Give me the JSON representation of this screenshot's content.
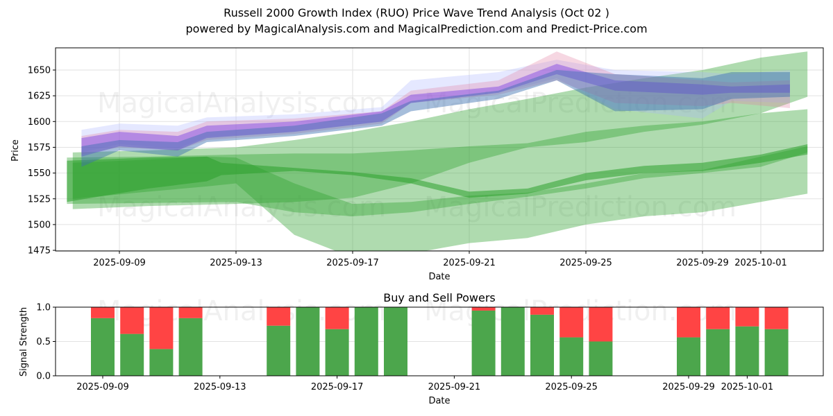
{
  "header": {
    "title": "Russell 2000 Growth Index (RUO) Price Wave Trend Analysis (Oct 02 )",
    "subtitle": "powered by MagicalAnalysis.com and MagicalPrediction.com and Predict-Price.com"
  },
  "watermarks": [
    "MagicalAnalysis.com",
    "MagicalPrediction.com"
  ],
  "colors": {
    "green_band": "#2ca02c",
    "purple": "#7b3fe4",
    "blue": "#3a6fb0",
    "lavender": "#aab2ff",
    "pink": "#e07aa0",
    "buy": "#4ca64c",
    "sell": "#ff4444"
  },
  "chart_data": [
    {
      "type": "area",
      "title": "",
      "xlabel": "Date",
      "ylabel": "Price",
      "ylim": [
        1473,
        1672
      ],
      "yticks": [
        1475,
        1500,
        1525,
        1550,
        1575,
        1600,
        1625,
        1650
      ],
      "xticks": [
        "2025-09-09",
        "2025-09-13",
        "2025-09-17",
        "2025-09-21",
        "2025-09-25",
        "2025-09-29",
        "2025-10-01"
      ],
      "grid": true,
      "x_start": "2025-09-09",
      "bands": [
        {
          "name": "green-upper-band",
          "color": "green",
          "opacity": 0.38,
          "x": [
            -1.6,
            1,
            4,
            6,
            8,
            10,
            12,
            14,
            16,
            18,
            20,
            22.0,
            23.6
          ],
          "upper": [
            1570,
            1572,
            1575,
            1582,
            1590,
            1600,
            1612,
            1622,
            1633,
            1642,
            1650,
            1662,
            1668
          ],
          "lower": [
            1515,
            1518,
            1520,
            1522,
            1526,
            1540,
            1560,
            1575,
            1580,
            1590,
            1597,
            1608,
            1624
          ]
        },
        {
          "name": "green-middle-band",
          "color": "green",
          "opacity": 0.38,
          "x": [
            -1.8,
            1,
            4,
            6,
            8,
            10,
            12,
            14,
            16,
            18,
            20,
            22.0,
            23.6
          ],
          "upper": [
            1565,
            1566,
            1568,
            1569,
            1569,
            1572,
            1576,
            1579,
            1590,
            1596,
            1600,
            1608,
            1612
          ],
          "lower": [
            1520,
            1521,
            1522,
            1512,
            1508,
            1512,
            1520,
            1527,
            1535,
            1545,
            1550,
            1556,
            1570
          ]
        },
        {
          "name": "green-lower-band",
          "color": "green",
          "opacity": 0.38,
          "x": [
            -1.6,
            1,
            3,
            4,
            6,
            8,
            10,
            12,
            14,
            16,
            18,
            20,
            22.0,
            23.6
          ],
          "upper": [
            1560,
            1563,
            1566,
            1565,
            1540,
            1520,
            1522,
            1528,
            1531,
            1540,
            1550,
            1553,
            1566,
            1576
          ],
          "lower": [
            1525,
            1532,
            1537,
            1540,
            1490,
            1468,
            1472,
            1482,
            1487,
            1500,
            1508,
            1512,
            1522,
            1530
          ]
        },
        {
          "name": "green-dark-band",
          "color": "green",
          "opacity": 0.55,
          "x": [
            -1.8,
            1,
            3,
            3.5,
            6,
            8,
            10,
            12,
            14,
            16,
            18,
            20,
            22.0,
            23.6
          ],
          "upper": [
            1562,
            1565,
            1566,
            1560,
            1555,
            1551,
            1545,
            1532,
            1535,
            1550,
            1557,
            1560,
            1568,
            1578
          ],
          "lower": [
            1522,
            1535,
            1542,
            1548,
            1552,
            1548,
            1540,
            1526,
            1530,
            1543,
            1550,
            1552,
            1560,
            1568
          ]
        },
        {
          "name": "lavender-band",
          "color": "lavender",
          "opacity": 0.3,
          "x": [
            -1.3,
            0,
            2,
            3,
            6,
            9,
            10,
            13,
            15,
            17,
            20,
            21,
            23
          ],
          "upper": [
            1592,
            1598,
            1596,
            1604,
            1607,
            1614,
            1640,
            1648,
            1660,
            1650,
            1648,
            1646,
            1650
          ],
          "lower": [
            1570,
            1578,
            1574,
            1585,
            1590,
            1600,
            1618,
            1628,
            1642,
            1612,
            1603,
            1620,
            1618
          ]
        },
        {
          "name": "pink-band",
          "color": "pink",
          "opacity": 0.3,
          "x": [
            -1.3,
            0,
            2,
            3,
            6,
            9,
            10,
            13,
            15,
            17,
            20,
            21,
            23
          ],
          "upper": [
            1586,
            1592,
            1590,
            1600,
            1603,
            1610,
            1630,
            1640,
            1668,
            1646,
            1640,
            1638,
            1640
          ],
          "lower": [
            1568,
            1575,
            1572,
            1582,
            1588,
            1598,
            1618,
            1626,
            1640,
            1618,
            1615,
            1618,
            1613
          ]
        },
        {
          "name": "purple-band",
          "color": "purple",
          "opacity": 0.45,
          "x": [
            -1.3,
            0,
            2,
            3,
            6,
            9,
            10,
            13,
            15,
            17,
            20,
            21,
            23
          ],
          "upper": [
            1584,
            1590,
            1586,
            1596,
            1600,
            1610,
            1626,
            1634,
            1656,
            1640,
            1636,
            1634,
            1636
          ],
          "lower": [
            1566,
            1576,
            1572,
            1584,
            1590,
            1600,
            1618,
            1628,
            1646,
            1630,
            1626,
            1628,
            1628
          ]
        },
        {
          "name": "blue-band",
          "color": "blue",
          "opacity": 0.45,
          "x": [
            -1.3,
            0,
            2,
            3,
            6,
            9,
            10,
            13,
            15,
            17,
            20,
            21,
            23
          ],
          "upper": [
            1576,
            1582,
            1580,
            1590,
            1596,
            1608,
            1620,
            1630,
            1650,
            1646,
            1642,
            1648,
            1648
          ],
          "lower": [
            1556,
            1572,
            1566,
            1580,
            1586,
            1596,
            1610,
            1622,
            1640,
            1610,
            1612,
            1622,
            1624
          ]
        }
      ]
    },
    {
      "type": "bar",
      "title": "Buy and Sell Powers",
      "xlabel": "Date",
      "ylabel": "Signal Strength",
      "ylim": [
        0,
        1.0
      ],
      "yticks": [
        "0.0",
        "0.5",
        "1.0"
      ],
      "xticks": [
        "2025-09-09",
        "2025-09-13",
        "2025-09-17",
        "2025-09-21",
        "2025-09-25",
        "2025-09-29",
        "2025-10-01"
      ],
      "categories": [
        "2025-09-09",
        "2025-09-10",
        "2025-09-11",
        "2025-09-12",
        "2025-09-15",
        "2025-09-16",
        "2025-09-17",
        "2025-09-18",
        "2025-09-19",
        "2025-09-22",
        "2025-09-23",
        "2025-09-24",
        "2025-09-25",
        "2025-09-26",
        "2025-09-29",
        "2025-09-30",
        "2025-10-01",
        "2025-10-02"
      ],
      "series": [
        {
          "name": "Buy",
          "values": [
            0.84,
            0.61,
            0.39,
            0.84,
            0.73,
            1.0,
            0.68,
            1.0,
            1.0,
            0.95,
            1.0,
            0.89,
            0.56,
            0.5,
            0.56,
            0.68,
            0.72,
            0.68
          ]
        },
        {
          "name": "Sell",
          "values": [
            0.16,
            0.39,
            0.61,
            0.16,
            0.27,
            0.0,
            0.32,
            0.0,
            0.0,
            0.05,
            0.0,
            0.11,
            0.44,
            0.5,
            0.44,
            0.32,
            0.28,
            0.32
          ]
        }
      ]
    }
  ]
}
